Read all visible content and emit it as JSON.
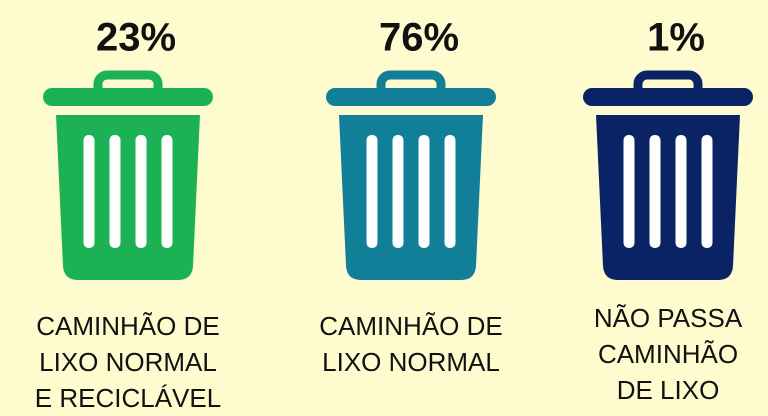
{
  "chart_data": {
    "type": "icon",
    "categories": [
      "CAMINHÃO DE\nLIXO NORMAL\nE RECICLÁVEL",
      "CAMINHÃO DE\nLIXO NORMAL",
      "NÃO PASSA\nCAMINHÃO\nDE LIXO"
    ],
    "values": [
      23,
      76,
      1
    ],
    "value_labels": [
      "23%",
      "76%",
      "1%"
    ],
    "colors": [
      "#1db156",
      "#127f99",
      "#0a2364"
    ]
  }
}
